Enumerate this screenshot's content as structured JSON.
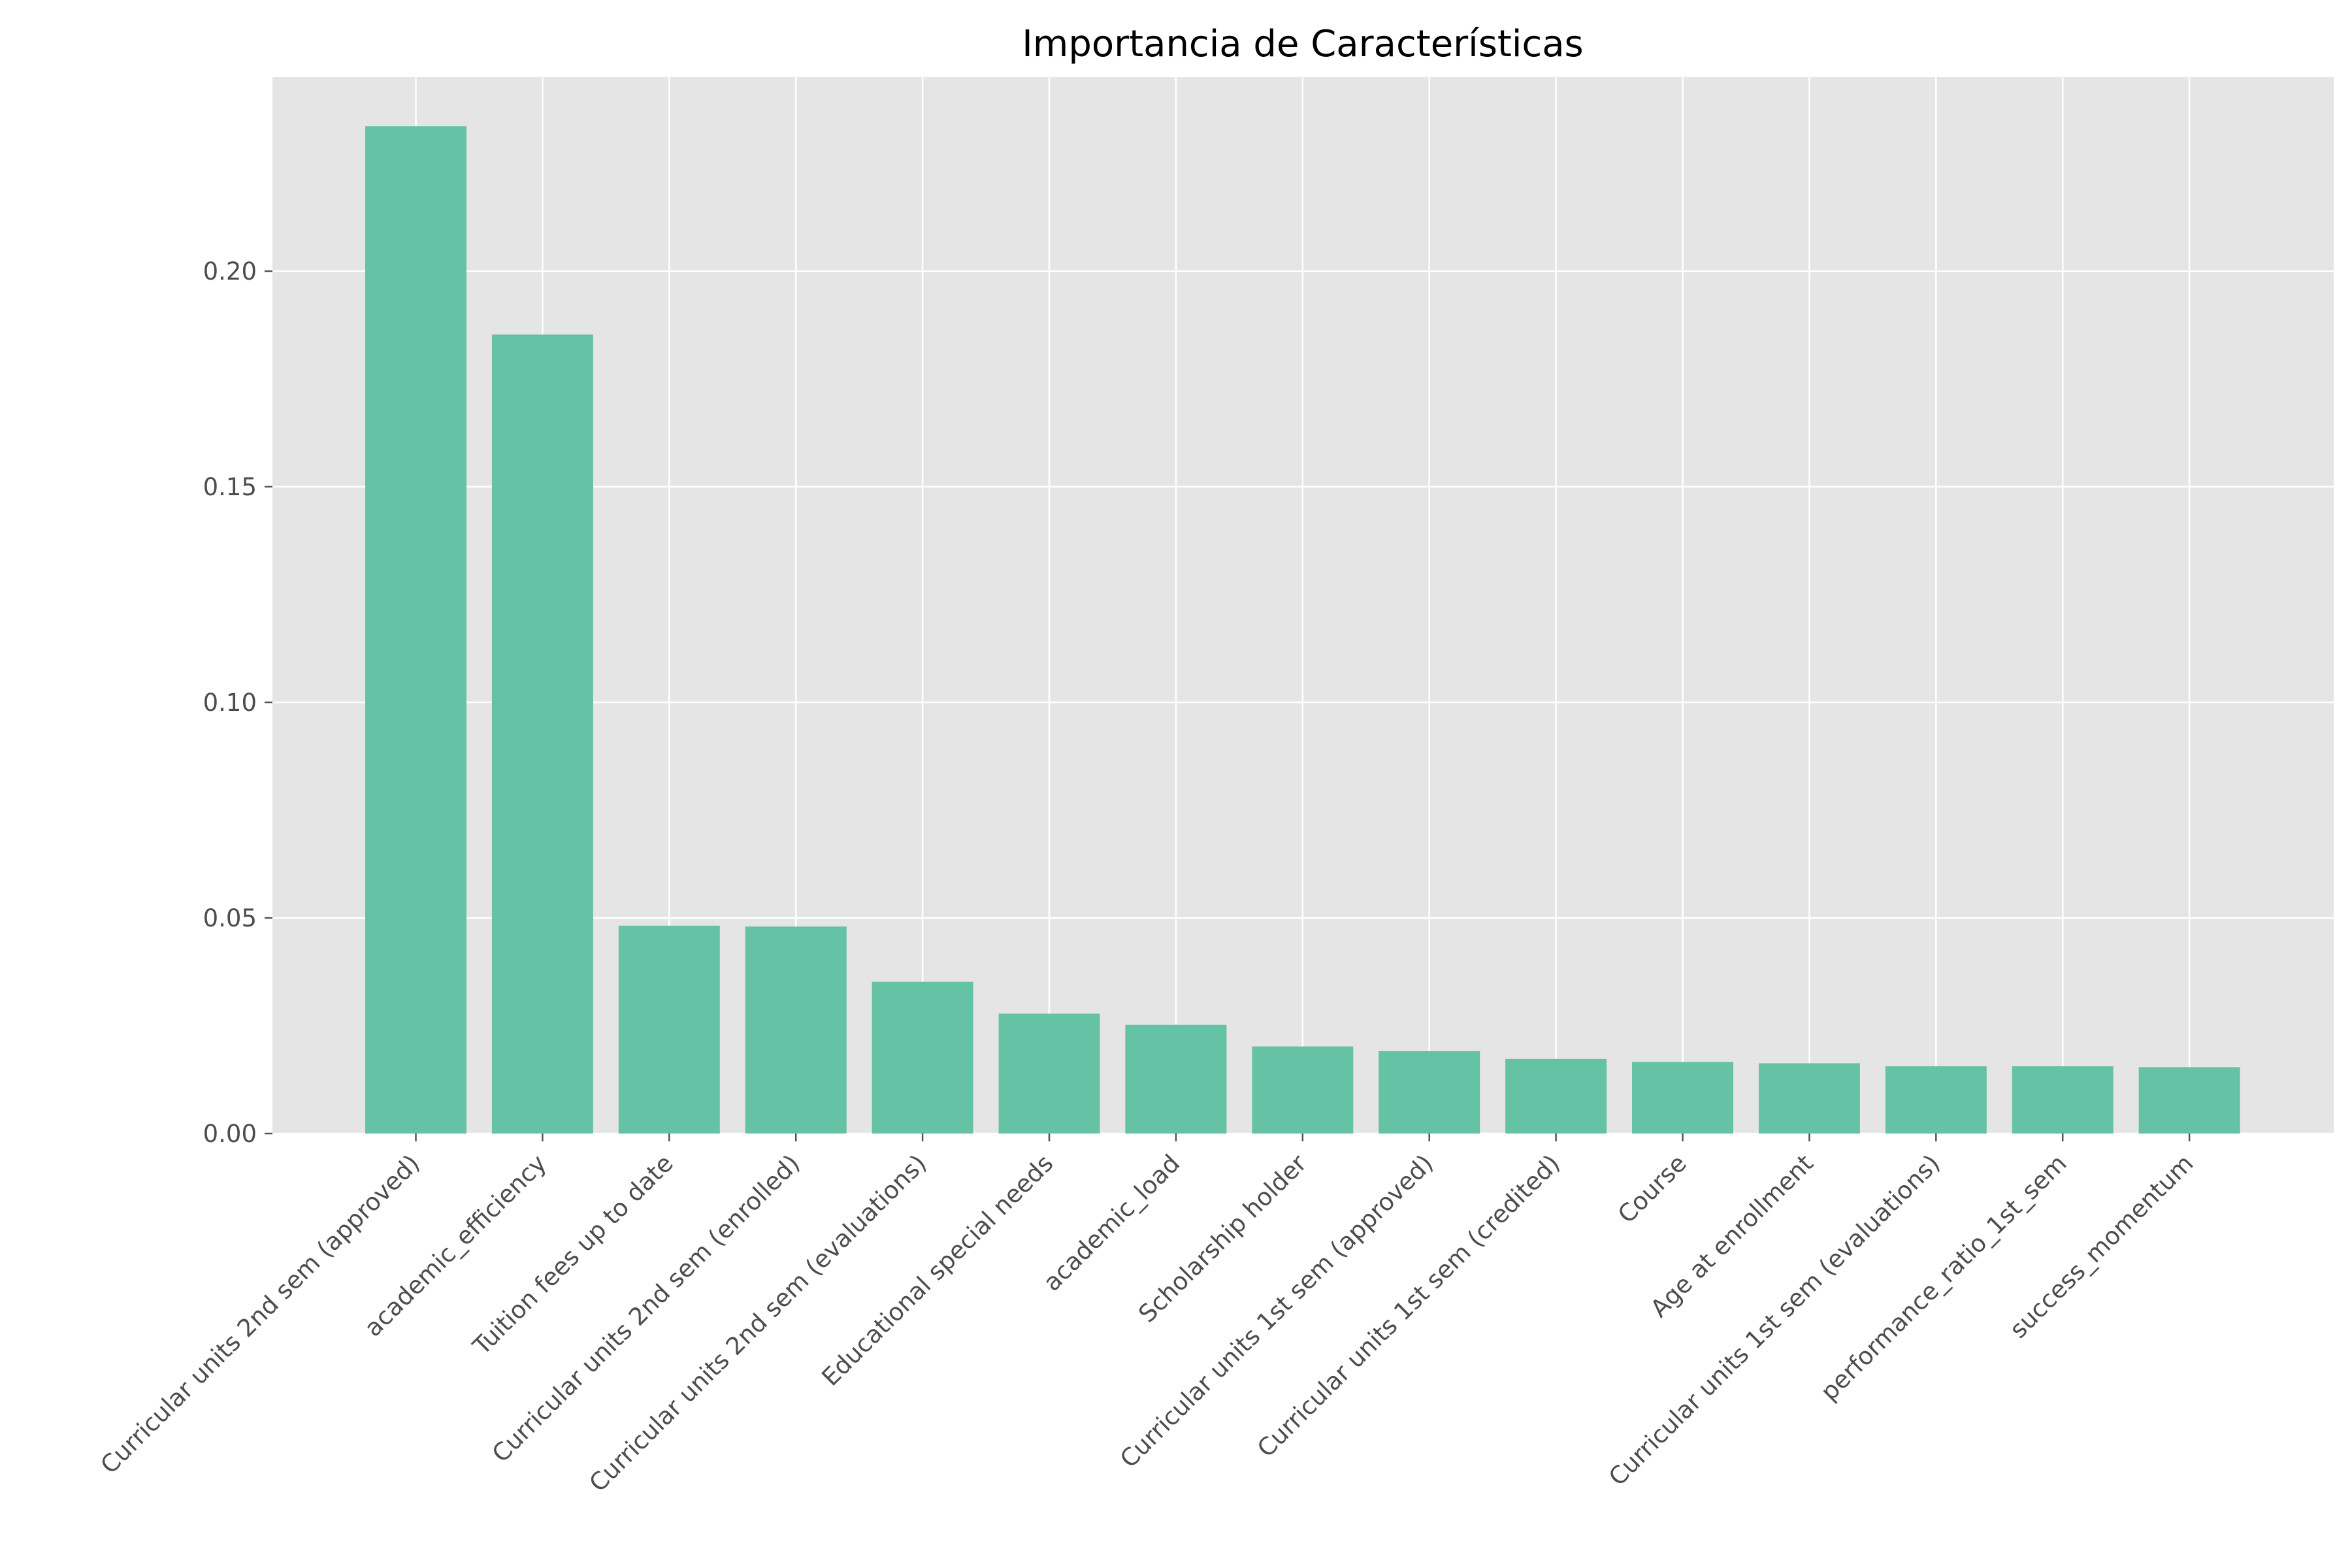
{
  "chart_data": {
    "type": "bar",
    "title": "Importancia de Características",
    "xlabel": "",
    "ylabel": "",
    "categories": [
      "Curricular units 2nd sem (approved)",
      "academic_efficiency",
      "Tuition fees up to date",
      "Curricular units 2nd sem (enrolled)",
      "Curricular units 2nd sem (evaluations)",
      "Educational special needs",
      "academic_load",
      "Scholarship holder",
      "Curricular units 1st sem (approved)",
      "Curricular units 1st sem (credited)",
      "Course",
      "Age at enrollment",
      "Curricular units 1st sem (evaluations)",
      "performance_ratio_1st_sem",
      "success_momentum"
    ],
    "values": [
      0.2336,
      0.1853,
      0.0482,
      0.048,
      0.0352,
      0.0278,
      0.0252,
      0.0202,
      0.0191,
      0.0173,
      0.0166,
      0.0163,
      0.0156,
      0.0156,
      0.0154
    ],
    "ylim": [
      0,
      0.245
    ],
    "yticks": [
      "0.00",
      "0.05",
      "0.10",
      "0.15",
      "0.20"
    ],
    "grid": true,
    "bar_color": "#66c2a5",
    "background_color": "#e5e5e5",
    "grid_color": "#ffffff"
  }
}
